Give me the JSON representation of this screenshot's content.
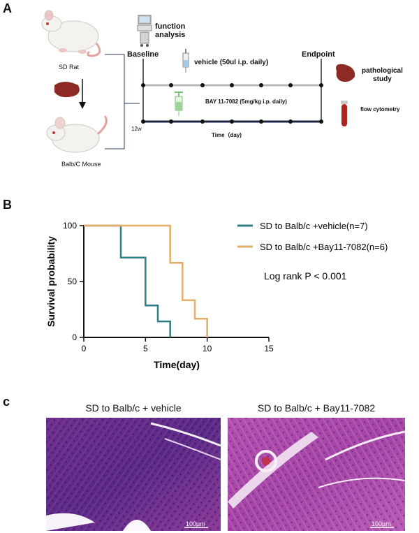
{
  "panelA": {
    "label": "A",
    "rat_label": "SD Rat",
    "mouse_label": "Balb/C Mouse",
    "function_label": "function\nanalysis",
    "baseline_label": "Baseline",
    "endpoint_label": "Endpoint",
    "vehicle_label": "vehicle (50ul i.p. daily)",
    "bay_label": "BAY 11-7082 (5mg/kg i.p. daily)",
    "week_label": "12w",
    "time_label": "Time（day)",
    "pathology_label": "pathological\nstudy",
    "flow_label": "flow cytometry",
    "colors": {
      "vehicle_line": "#b9b9b9",
      "bay_line": "#1b2340",
      "spleen": "#8e2a24",
      "tube": "#b02420"
    }
  },
  "panelB": {
    "label": "B",
    "log_rank": "Log rank P < 0.001",
    "chart_data": {
      "type": "line",
      "step": true,
      "title": "",
      "xlabel": "Time(day)",
      "ylabel": "Survival probability",
      "xlim": [
        0,
        15
      ],
      "ylim": [
        0,
        100
      ],
      "xticks": [
        0,
        5,
        10,
        15
      ],
      "yticks": [
        0,
        50,
        100
      ],
      "legend_position": "top-right",
      "series": [
        {
          "name": "SD to Balb/c +vehicle(n=7)",
          "color": "#2e7e86",
          "x": [
            0,
            3,
            5,
            6,
            7
          ],
          "y": [
            100,
            71.4,
            28.6,
            14.3,
            0
          ]
        },
        {
          "name": "SD to Balb/c +Bay11-7082(n=6)",
          "color": "#e3ae6a",
          "x": [
            0,
            7,
            8,
            9,
            10
          ],
          "y": [
            100,
            66.7,
            33.3,
            16.7,
            0
          ]
        }
      ]
    }
  },
  "panelC": {
    "label": "c",
    "left_title": "SD to Balb/c + vehicle",
    "right_title": "SD to Balb/c + Bay11-7082",
    "scale_label": "100µm"
  }
}
